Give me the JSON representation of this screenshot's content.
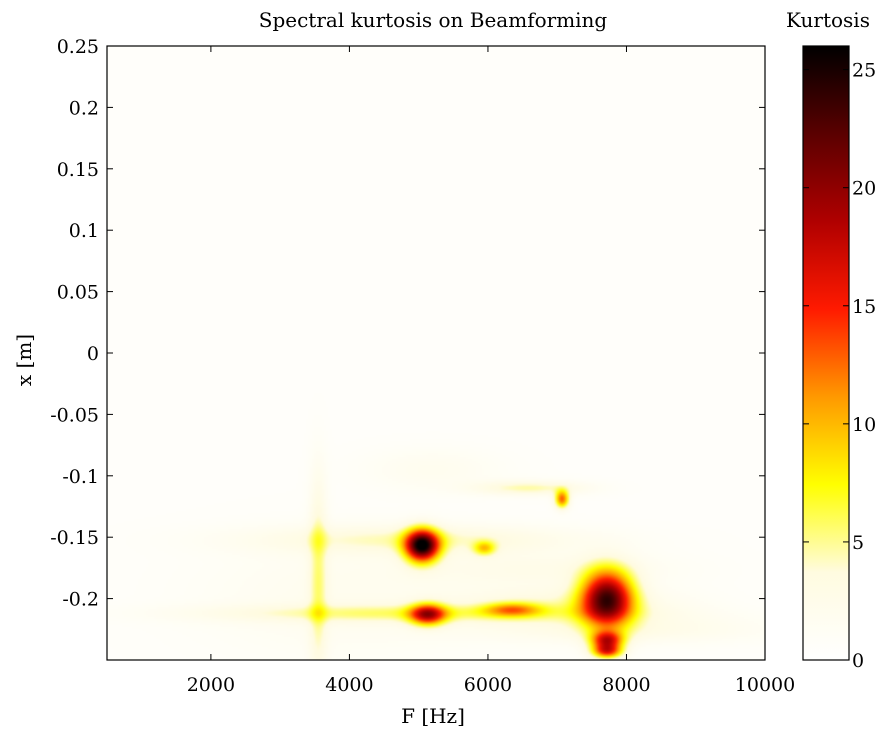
{
  "chart_data": {
    "type": "heatmap",
    "title": "Spectral kurtosis on Beamforming",
    "xlabel": "F [Hz]",
    "ylabel": "x [m]",
    "xlim": [
      500,
      10000
    ],
    "ylim": [
      -0.25,
      0.25
    ],
    "x_ticks": [
      "2000",
      "4000",
      "6000",
      "8000",
      "10000"
    ],
    "y_ticks": [
      "0.25",
      "0.2",
      "0.15",
      "0.1",
      "0.05",
      "0",
      "-0.05",
      "-0.1",
      "-0.15",
      "-0.2"
    ],
    "x_tick_values": [
      2000,
      4000,
      6000,
      8000,
      10000
    ],
    "y_tick_values": [
      0.25,
      0.2,
      0.15,
      0.1,
      0.05,
      0,
      -0.05,
      -0.1,
      -0.15,
      -0.2
    ],
    "colorbar": {
      "label": "Kurtosis",
      "range": [
        0,
        26
      ],
      "ticks": [
        "0",
        "5",
        "10",
        "15",
        "20",
        "25"
      ],
      "tick_values": [
        0,
        5,
        10,
        15,
        20,
        25
      ],
      "colormap": "hot (reversed)",
      "colors": [
        "#ffffff",
        "#fffbe0",
        "#ffff00",
        "#ff9900",
        "#ff1a00",
        "#b00000",
        "#5a0000",
        "#000000"
      ]
    },
    "background_level": 0.6,
    "features": [
      {
        "name": "hotspot",
        "f_center": 7720,
        "x_center": -0.2,
        "f_width": 260,
        "x_width": 0.016,
        "peak": 21
      },
      {
        "name": "hotspot",
        "f_center": 5050,
        "x_center": -0.157,
        "f_width": 170,
        "x_width": 0.009,
        "peak": 24
      },
      {
        "name": "hotspot",
        "f_center": 5130,
        "x_center": -0.213,
        "f_width": 180,
        "x_width": 0.006,
        "peak": 15
      },
      {
        "name": "hotspot",
        "f_center": 7720,
        "x_center": -0.234,
        "f_width": 160,
        "x_width": 0.005,
        "peak": 14
      },
      {
        "name": "hotspot",
        "f_center": 7720,
        "x_center": -0.243,
        "f_width": 150,
        "x_width": 0.004,
        "peak": 13
      },
      {
        "name": "hotspot",
        "f_center": 7070,
        "x_center": -0.119,
        "f_width": 70,
        "x_width": 0.005,
        "peak": 12
      },
      {
        "name": "hotspot",
        "f_center": 5950,
        "x_center": -0.159,
        "f_width": 110,
        "x_width": 0.004,
        "peak": 7
      },
      {
        "name": "hotspot",
        "f_center": 6350,
        "x_center": -0.209,
        "f_width": 280,
        "x_width": 0.004,
        "peak": 8
      },
      {
        "name": "streak",
        "f_center": 4950,
        "x_center": -0.152,
        "f_width": 1600,
        "x_width": 0.008,
        "peak": 3.5
      },
      {
        "name": "streak",
        "f_center": 4800,
        "x_center": -0.212,
        "f_width": 1900,
        "x_width": 0.005,
        "peak": 4
      },
      {
        "name": "streak",
        "f_center": 7200,
        "x_center": -0.205,
        "f_width": 1100,
        "x_width": 0.01,
        "peak": 3
      },
      {
        "name": "streak",
        "f_center": 6600,
        "x_center": -0.11,
        "f_width": 550,
        "x_width": 0.004,
        "peak": 4
      },
      {
        "name": "streak",
        "f_center": 6850,
        "x_center": -0.176,
        "f_width": 1300,
        "x_width": 0.01,
        "peak": 1.8
      },
      {
        "name": "streak",
        "f_center": 7900,
        "x_center": -0.225,
        "f_width": 1400,
        "x_width": 0.008,
        "peak": 2.2
      },
      {
        "name": "streak",
        "f_center": 5200,
        "x_center": -0.095,
        "f_width": 700,
        "x_width": 0.012,
        "peak": 1.3
      },
      {
        "name": "streak",
        "f_center": 3550,
        "x_center": -0.205,
        "f_width": 90,
        "x_width": 0.05,
        "peak": 3.2
      },
      {
        "name": "streak",
        "f_center": 3550,
        "x_center": -0.14,
        "f_width": 90,
        "x_width": 0.04,
        "peak": 1.8
      },
      {
        "name": "streak",
        "f_center": 3900,
        "x_center": -0.2,
        "f_width": 1500,
        "x_width": 0.035,
        "peak": 1.3
      }
    ]
  }
}
